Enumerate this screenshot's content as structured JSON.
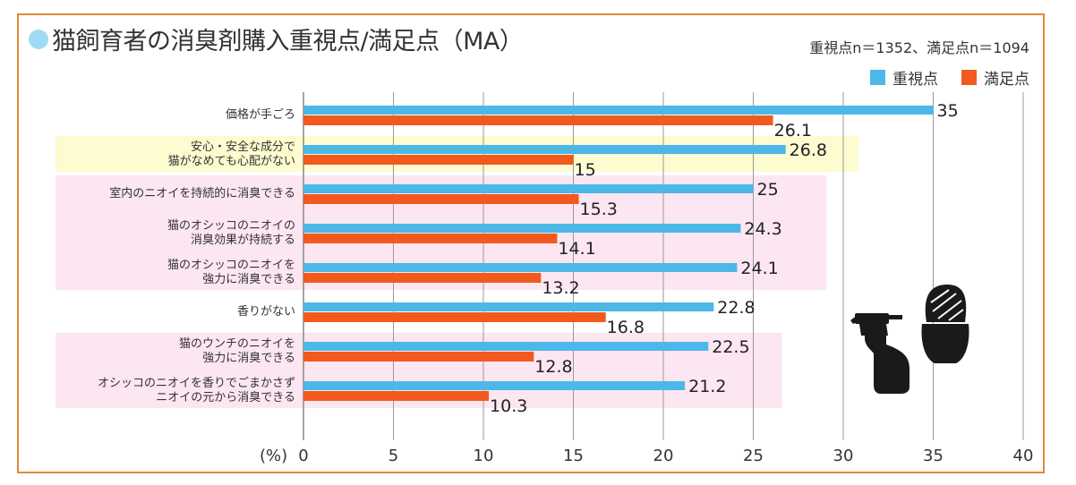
{
  "title": "猫飼育者の消臭剤購入重視点/満足点（MA）",
  "sample_note": "重視点n＝1352、満足点n＝1094",
  "colors": {
    "importance": "#4bb8e8",
    "satisfaction": "#f25a1d",
    "band_yellow": "#fdfbd0",
    "band_pink": "#fbe6f1",
    "frame": "#e0893a"
  },
  "chart_data": {
    "type": "bar",
    "orientation": "horizontal",
    "title": "猫飼育者の消臭剤購入重視点/満足点（MA）",
    "xlabel": "(%)",
    "xlim": [
      0,
      40
    ],
    "xticks": [
      "0",
      "5",
      "10",
      "15",
      "20",
      "25",
      "30",
      "35",
      "40"
    ],
    "grid": true,
    "legend_position": "top-right",
    "categories": [
      [
        "価格が手ごろ"
      ],
      [
        "安心・安全な成分で",
        "猫がなめても心配がない"
      ],
      [
        "室内のニオイを持続的に消臭できる"
      ],
      [
        "猫のオシッコのニオイの",
        "消臭効果が持続する"
      ],
      [
        "猫のオシッコのニオイを",
        "強力に消臭できる"
      ],
      [
        "香りがない"
      ],
      [
        "猫のウンチのニオイを",
        "強力に消臭できる"
      ],
      [
        "オシッコのニオイを香りでごまかさず",
        "ニオイの元から消臭できる"
      ]
    ],
    "series": [
      {
        "name": "重視点",
        "values": [
          35,
          26.8,
          25,
          24.3,
          24.1,
          22.8,
          22.5,
          21.2
        ]
      },
      {
        "name": "満足点",
        "values": [
          26.1,
          15,
          15.3,
          14.1,
          13.2,
          16.8,
          12.8,
          10.3
        ]
      }
    ],
    "highlight_bands": [
      {
        "rows": [
          1,
          1
        ],
        "color": "yellow"
      },
      {
        "rows": [
          2,
          4
        ],
        "color": "pink"
      },
      {
        "rows": [
          6,
          7
        ],
        "color": "pink"
      }
    ]
  }
}
